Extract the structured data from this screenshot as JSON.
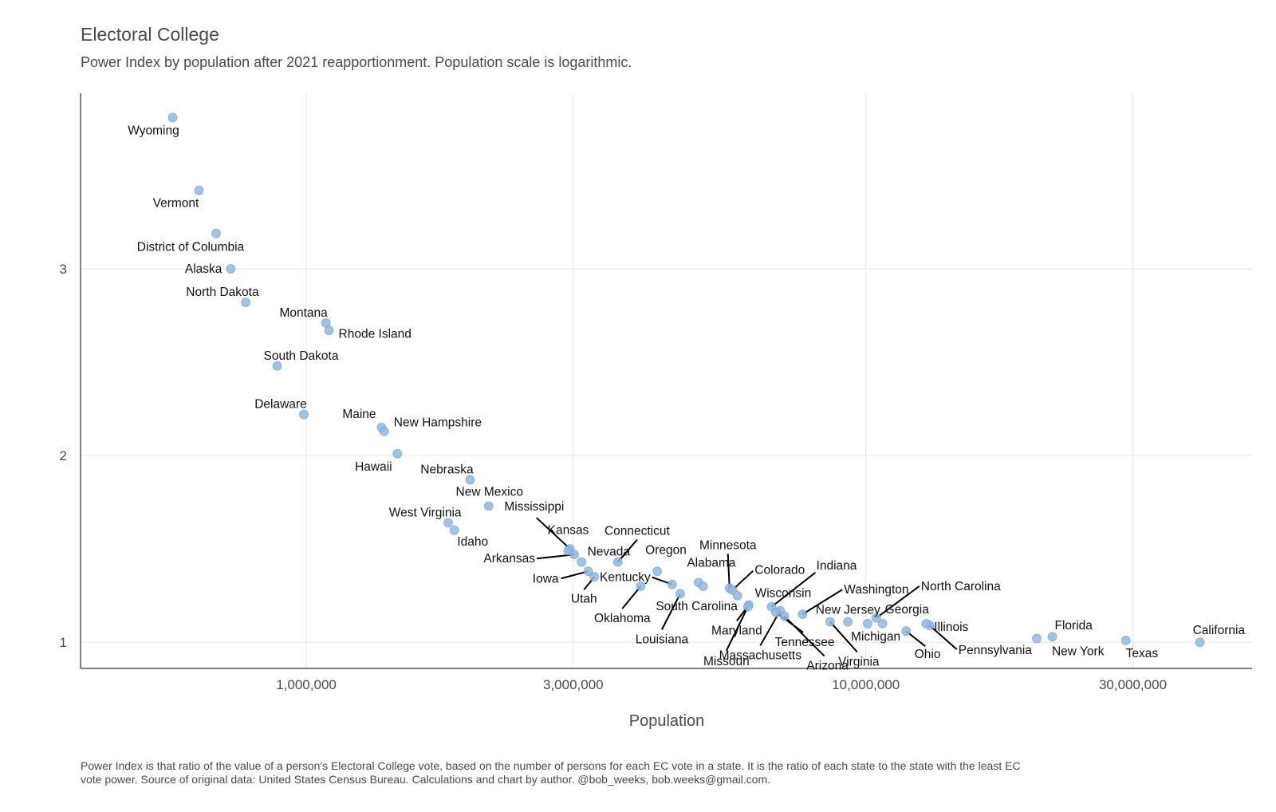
{
  "title": "Electoral College",
  "subtitle": "Power Index by population after 2021 reapportionment. Population scale is logarithmic.",
  "caption": "Power Index is that ratio of the value of a person's Electoral College vote, based on the number of persons for each EC vote in a state. It is the ratio of each state to the state with the least EC vote power. Source of original data: United States Census Bureau. Calculations and chart by author. @bob_weeks, bob.weeks@gmail.com.",
  "colors": {
    "point": "#8fb9e0",
    "point_stroke": "#5b92c8",
    "grid": "#e5e5e5",
    "axis": "#555555",
    "text": "#4a4a4a",
    "label": "#111111"
  },
  "chart_data": {
    "type": "scatter",
    "xlabel": "Population",
    "ylabel": "",
    "x_scale": "log",
    "xlim": [
      395000,
      49000000
    ],
    "ylim": [
      0.86,
      3.94
    ],
    "x_ticks": [
      1000000,
      3000000,
      10000000,
      30000000
    ],
    "x_tick_labels": [
      "1,000,000",
      "3,000,000",
      "10,000,000",
      "30,000,000"
    ],
    "y_ticks": [
      1,
      2,
      3
    ],
    "y_tick_labels": [
      "1",
      "2",
      "3"
    ],
    "grid": true,
    "points": [
      {
        "name": "Wyoming",
        "x": 577000,
        "y": 3.81
      },
      {
        "name": "Vermont",
        "x": 643000,
        "y": 3.42
      },
      {
        "name": "District of Columbia",
        "x": 690000,
        "y": 3.19
      },
      {
        "name": "Alaska",
        "x": 733000,
        "y": 3.0
      },
      {
        "name": "North Dakota",
        "x": 779000,
        "y": 2.82
      },
      {
        "name": "Montana",
        "x": 1084000,
        "y": 2.71
      },
      {
        "name": "Rhode Island",
        "x": 1098000,
        "y": 2.67
      },
      {
        "name": "South Dakota",
        "x": 887000,
        "y": 2.48
      },
      {
        "name": "Delaware",
        "x": 990000,
        "y": 2.22
      },
      {
        "name": "Maine",
        "x": 1363000,
        "y": 2.15
      },
      {
        "name": "New Hampshire",
        "x": 1378000,
        "y": 2.13
      },
      {
        "name": "Hawaii",
        "x": 1455000,
        "y": 2.01
      },
      {
        "name": "Nebraska",
        "x": 1962000,
        "y": 1.87
      },
      {
        "name": "New Mexico",
        "x": 2118000,
        "y": 1.73
      },
      {
        "name": "West Virginia",
        "x": 1794000,
        "y": 1.64
      },
      {
        "name": "Idaho",
        "x": 1839000,
        "y": 1.6
      },
      {
        "name": "Mississippi",
        "x": 2961000,
        "y": 1.5
      },
      {
        "name": "Kansas",
        "x": 2938000,
        "y": 1.49
      },
      {
        "name": "Arkansas",
        "x": 3012000,
        "y": 1.47
      },
      {
        "name": "Nevada",
        "x": 3105000,
        "y": 1.43
      },
      {
        "name": "Connecticut",
        "x": 3606000,
        "y": 1.43
      },
      {
        "name": "Iowa",
        "x": 3190000,
        "y": 1.38
      },
      {
        "name": "Utah",
        "x": 3272000,
        "y": 1.35
      },
      {
        "name": "Oregon",
        "x": 4237000,
        "y": 1.38
      },
      {
        "name": "Oklahoma",
        "x": 3959000,
        "y": 1.3
      },
      {
        "name": "Kentucky",
        "x": 4506000,
        "y": 1.31
      },
      {
        "name": "Louisiana",
        "x": 4658000,
        "y": 1.26
      },
      {
        "name": "Alabama",
        "x": 5024000,
        "y": 1.32
      },
      {
        "name": "South Carolina",
        "x": 5118000,
        "y": 1.3
      },
      {
        "name": "Minnesota",
        "x": 5706000,
        "y": 1.29
      },
      {
        "name": "Colorado",
        "x": 5773000,
        "y": 1.28
      },
      {
        "name": "Wisconsin",
        "x": 5894000,
        "y": 1.25
      },
      {
        "name": "Maryland",
        "x": 6177000,
        "y": 1.2
      },
      {
        "name": "Missouri",
        "x": 6155000,
        "y": 1.19
      },
      {
        "name": "Indiana",
        "x": 6785000,
        "y": 1.19
      },
      {
        "name": "Massachusetts",
        "x": 7029000,
        "y": 1.17
      },
      {
        "name": "Tennessee",
        "x": 6910000,
        "y": 1.16
      },
      {
        "name": "Arizona",
        "x": 7152000,
        "y": 1.14
      },
      {
        "name": "Washington",
        "x": 7705000,
        "y": 1.15
      },
      {
        "name": "Virginia",
        "x": 8631000,
        "y": 1.11
      },
      {
        "name": "New Jersey",
        "x": 9289000,
        "y": 1.11
      },
      {
        "name": "Michigan",
        "x": 10077000,
        "y": 1.1
      },
      {
        "name": "North Carolina",
        "x": 10439000,
        "y": 1.13
      },
      {
        "name": "Georgia",
        "x": 10712000,
        "y": 1.1
      },
      {
        "name": "Ohio",
        "x": 11799000,
        "y": 1.06
      },
      {
        "name": "Pennsylvania",
        "x": 13003000,
        "y": 1.09
      },
      {
        "name": "Illinois",
        "x": 12812000,
        "y": 1.1
      },
      {
        "name": "New York",
        "x": 20201000,
        "y": 1.02
      },
      {
        "name": "Florida",
        "x": 21538000,
        "y": 1.03
      },
      {
        "name": "Texas",
        "x": 29146000,
        "y": 1.01
      },
      {
        "name": "California",
        "x": 39538000,
        "y": 1.0
      }
    ]
  }
}
